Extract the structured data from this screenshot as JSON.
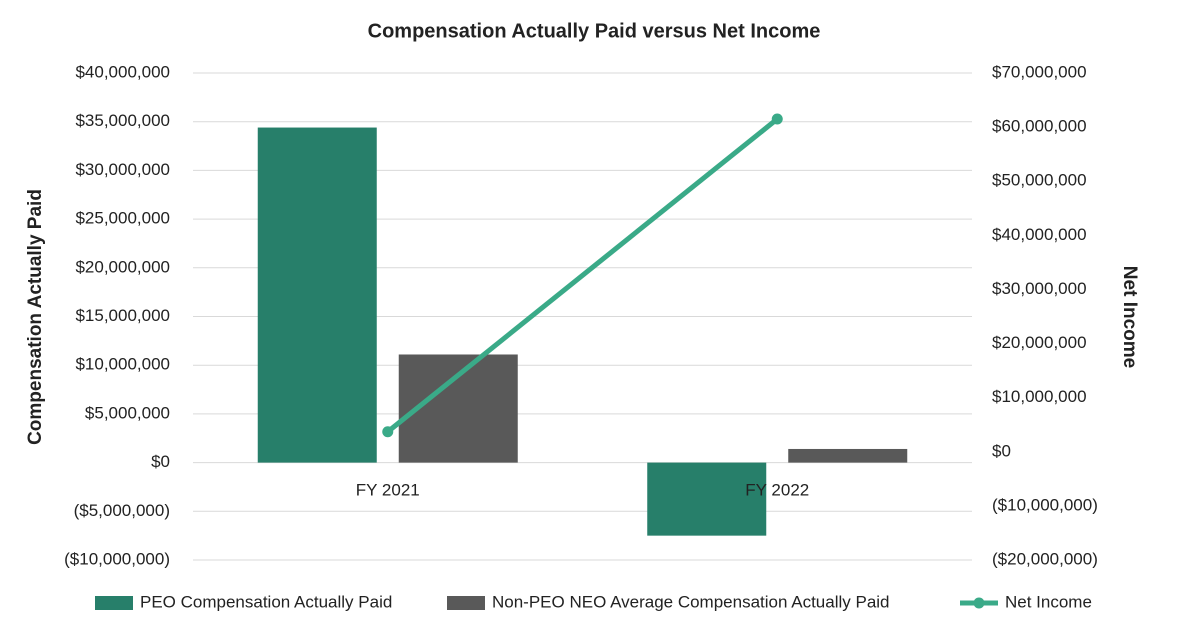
{
  "chart_data": {
    "type": "bar",
    "title": "Compensation Actually Paid versus Net Income",
    "y_label": "Compensation Actually Paid",
    "y2_label": "Net Income",
    "categories": [
      "FY 2021",
      "FY 2022"
    ],
    "series": [
      {
        "name": "PEO Compensation Actually Paid",
        "color": "#277f6a",
        "values": [
          34400000,
          -7500000
        ]
      },
      {
        "name": "Non-PEO NEO Average Compensation Actually Paid",
        "color": "#595959",
        "values": [
          11100000,
          1400000
        ]
      },
      {
        "name": "Net Income",
        "color": "#3aaa88",
        "type": "line",
        "axis": "y2",
        "values": [
          3700000,
          61500000
        ]
      }
    ],
    "ylim": [
      -10000000,
      40000000
    ],
    "yticks": [
      {
        "value": -10000000,
        "label": "($10,000,000)"
      },
      {
        "value": -5000000,
        "label": "($5,000,000)"
      },
      {
        "value": 0,
        "label": "$0"
      },
      {
        "value": 5000000,
        "label": "$5,000,000"
      },
      {
        "value": 10000000,
        "label": "$10,000,000"
      },
      {
        "value": 15000000,
        "label": "$15,000,000"
      },
      {
        "value": 20000000,
        "label": "$20,000,000"
      },
      {
        "value": 25000000,
        "label": "$25,000,000"
      },
      {
        "value": 30000000,
        "label": "$30,000,000"
      },
      {
        "value": 35000000,
        "label": "$35,000,000"
      },
      {
        "value": 40000000,
        "label": "$40,000,000"
      }
    ],
    "y2lim": [
      -20000000,
      70000000
    ],
    "y2ticks": [
      {
        "value": -20000000,
        "label": "($20,000,000)"
      },
      {
        "value": -10000000,
        "label": "($10,000,000)"
      },
      {
        "value": 0,
        "label": "$0"
      },
      {
        "value": 10000000,
        "label": "$10,000,000"
      },
      {
        "value": 20000000,
        "label": "$20,000,000"
      },
      {
        "value": 30000000,
        "label": "$30,000,000"
      },
      {
        "value": 40000000,
        "label": "$40,000,000"
      },
      {
        "value": 50000000,
        "label": "$50,000,000"
      },
      {
        "value": 60000000,
        "label": "$60,000,000"
      },
      {
        "value": 70000000,
        "label": "$70,000,000"
      }
    ],
    "grid": true,
    "legend": "bottom"
  }
}
